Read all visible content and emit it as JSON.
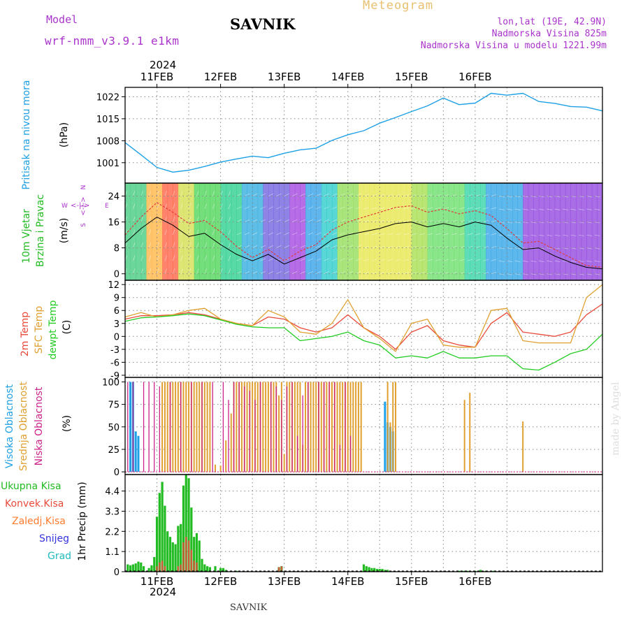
{
  "header": {
    "model_label": "Model",
    "model_name": "wrf-nmm_v3.9.1 e1km",
    "station": "SAVNIK",
    "product": "Meteogram",
    "lonlat": "lon,lat (19E, 42.9N)",
    "elevation": "Nadmorska Visina 825m",
    "model_elevation": "Nadmorska Visina u modelu 1221.99m"
  },
  "footer": {
    "station": "SAVNIK",
    "watermark": "made by Angel"
  },
  "time_axis": {
    "year": "2024",
    "days": [
      "11FEB",
      "12FEB",
      "13FEB",
      "14FEB",
      "15FEB",
      "16FEB"
    ],
    "start_hour_before_first_day": 12
  },
  "colors": {
    "pressure": "#1ea0e6",
    "wind_speed": "#000000",
    "wind_gust": "#e03c3c",
    "temp_2m": "#e84a3a",
    "temp_sfc": "#e0a030",
    "dewpoint": "#22cc22",
    "cloud_high": "#1ea0e6",
    "cloud_mid": "#e0a030",
    "cloud_low": "#cc2288",
    "precip_total": "#22bb22",
    "precip_conv": "#e84a3a",
    "precip_frz": "#ff7b2e",
    "snow": "#3333dd",
    "hail": "#22bbbb",
    "wind_label": "#22bb22",
    "wind_rose": "#aa33cc"
  },
  "chart_data": [
    {
      "id": "pressure",
      "type": "line",
      "ylabel_lines": [
        "Pritisak na nivou mora",
        "(hPa)"
      ],
      "yticks": [
        1001,
        1008,
        1015,
        1022
      ],
      "ylim": [
        994.5,
        1025
      ],
      "x_hours": [
        0,
        6,
        12,
        18,
        24,
        30,
        36,
        42,
        48,
        54,
        60,
        66,
        72,
        78,
        84,
        90,
        96,
        102,
        108,
        114,
        120,
        126,
        132,
        138,
        144,
        150,
        156,
        162,
        168,
        174,
        180
      ],
      "values": [
        1007.4,
        1003.5,
        999.5,
        998.0,
        998.6,
        999.8,
        1001.2,
        1002.2,
        1003.1,
        1002.6,
        1004.0,
        1005.1,
        1005.6,
        1008.1,
        1009.9,
        1011.2,
        1013.6,
        1015.4,
        1017.3,
        1019.1,
        1021.6,
        1019.5,
        1020.0,
        1023.1,
        1022.5,
        1023.1,
        1020.5,
        1019.9,
        1018.9,
        1018.7,
        1017.5
      ]
    },
    {
      "id": "wind",
      "type": "line",
      "ylabel_lines": [
        "10m Vjetar",
        "Brzina i Pravac",
        "(m/s)"
      ],
      "rose": {
        "n": "N",
        "s": "S",
        "e": "E",
        "w": "W"
      },
      "yticks": [
        0,
        8,
        16,
        24
      ],
      "ylim": [
        -2,
        28
      ],
      "series": [
        {
          "name": "speed",
          "x_hours": [
            0,
            6,
            12,
            18,
            24,
            30,
            36,
            42,
            48,
            54,
            60,
            66,
            72,
            78,
            84,
            90,
            96,
            102,
            108,
            114,
            120,
            126,
            132,
            138,
            144,
            150,
            156,
            162,
            168,
            174,
            180
          ],
          "values": [
            9.5,
            14.0,
            17.5,
            15.0,
            11.5,
            12.5,
            9.0,
            6.0,
            4.0,
            6.0,
            3.0,
            5.0,
            7.0,
            10.5,
            12.0,
            13.0,
            14.0,
            15.5,
            16.0,
            14.5,
            15.5,
            14.5,
            16.0,
            15.0,
            11.0,
            7.5,
            8.0,
            5.5,
            3.5,
            2.0,
            1.5
          ]
        },
        {
          "name": "gust",
          "x_hours": [
            0,
            6,
            12,
            18,
            24,
            30,
            36,
            42,
            48,
            54,
            60,
            66,
            72,
            78,
            84,
            90,
            96,
            102,
            108,
            114,
            120,
            126,
            132,
            138,
            144,
            150,
            156,
            162,
            168,
            174,
            180
          ],
          "values": [
            12.0,
            17.5,
            22.0,
            19.0,
            15.5,
            16.5,
            13.0,
            8.5,
            5.0,
            7.5,
            4.0,
            7.0,
            9.0,
            13.5,
            16.0,
            17.5,
            19.0,
            20.5,
            21.0,
            19.0,
            20.0,
            18.5,
            19.5,
            18.0,
            14.0,
            9.5,
            10.0,
            7.5,
            5.0,
            2.5,
            2.0
          ]
        }
      ]
    },
    {
      "id": "temperature",
      "type": "line",
      "ylabel_lines": [
        "2m Temp",
        "SFC Temp",
        "dewpt Temp",
        "(C)"
      ],
      "yticks": [
        -9,
        -6,
        -3,
        0,
        3,
        6,
        9,
        12
      ],
      "ylim": [
        -9.5,
        13
      ],
      "series": [
        {
          "name": "2m Temp",
          "x_hours": [
            0,
            6,
            12,
            18,
            24,
            30,
            36,
            42,
            48,
            54,
            60,
            66,
            72,
            78,
            84,
            90,
            96,
            102,
            108,
            114,
            120,
            126,
            132,
            138,
            144,
            150,
            156,
            162,
            168,
            174,
            180
          ],
          "values": [
            4.0,
            4.8,
            4.8,
            5.0,
            5.5,
            5.0,
            4.0,
            3.0,
            2.5,
            4.5,
            4.0,
            2.0,
            1.0,
            2.0,
            5.0,
            2.0,
            0.0,
            -3.0,
            1.0,
            2.5,
            -1.0,
            -2.0,
            -2.5,
            3.0,
            5.5,
            1.0,
            0.5,
            0.0,
            1.0,
            5.0,
            7.5
          ]
        },
        {
          "name": "SFC Temp",
          "x_hours": [
            0,
            6,
            12,
            18,
            24,
            30,
            36,
            42,
            48,
            54,
            60,
            66,
            72,
            78,
            84,
            90,
            96,
            102,
            108,
            114,
            120,
            126,
            132,
            138,
            144,
            150,
            156,
            162,
            168,
            174,
            180
          ],
          "values": [
            4.5,
            5.5,
            4.5,
            5.0,
            6.0,
            6.5,
            4.0,
            3.0,
            2.5,
            6.0,
            4.5,
            1.0,
            0.5,
            3.0,
            8.5,
            2.0,
            -0.5,
            -3.5,
            3.0,
            4.0,
            -2.0,
            -2.5,
            -2.5,
            6.0,
            6.5,
            -1.0,
            -1.5,
            -1.5,
            -1.5,
            9.0,
            12.0
          ]
        },
        {
          "name": "dewpt Temp",
          "x_hours": [
            0,
            6,
            12,
            18,
            24,
            30,
            36,
            42,
            48,
            54,
            60,
            66,
            72,
            78,
            84,
            90,
            96,
            102,
            108,
            114,
            120,
            126,
            132,
            138,
            144,
            150,
            156,
            162,
            168,
            174,
            180
          ],
          "values": [
            3.5,
            4.3,
            4.5,
            4.8,
            5.2,
            4.8,
            3.8,
            2.8,
            2.2,
            2.0,
            2.0,
            -1.0,
            -0.5,
            0.0,
            1.0,
            -1.0,
            -2.0,
            -5.0,
            -4.5,
            -5.0,
            -3.5,
            -5.0,
            -5.0,
            -4.5,
            -4.5,
            -7.5,
            -7.8,
            -6.0,
            -4.0,
            -3.0,
            0.5
          ]
        }
      ]
    },
    {
      "id": "clouds",
      "type": "bar",
      "ylabel_lines": [
        "Visoka Oblacnost",
        "Srednja Oblacnost",
        "Niska Oblacnost",
        "(%)"
      ],
      "yticks": [
        0,
        25,
        50,
        75,
        100
      ],
      "ylim": [
        -3,
        105
      ],
      "series": [
        {
          "name": "Visoka Oblacnost",
          "x_hours": [
            2,
            3,
            4,
            5,
            98,
            99,
            100,
            101
          ],
          "values": [
            100,
            100,
            45,
            40,
            78,
            55,
            50,
            45
          ]
        },
        {
          "name": "Srednja Oblacnost",
          "x_hours": [
            14,
            15,
            16,
            17,
            18,
            19,
            20,
            21,
            22,
            23,
            24,
            25,
            26,
            27,
            28,
            29,
            30,
            31,
            32,
            34,
            36,
            38,
            40,
            41,
            42,
            43,
            44,
            45,
            46,
            47,
            48,
            49,
            50,
            51,
            52,
            53,
            54,
            55,
            56,
            57,
            58,
            59,
            60,
            61,
            62,
            63,
            64,
            65,
            66,
            67,
            68,
            69,
            70,
            71,
            72,
            73,
            74,
            75,
            76,
            77,
            78,
            79,
            80,
            81,
            82,
            83,
            84,
            85,
            86,
            87,
            88,
            89,
            99,
            100,
            101,
            102,
            128,
            130,
            150
          ],
          "values": [
            100,
            100,
            100,
            100,
            100,
            100,
            100,
            100,
            100,
            100,
            100,
            100,
            100,
            100,
            100,
            100,
            100,
            100,
            100,
            8,
            7,
            35,
            65,
            100,
            100,
            100,
            100,
            100,
            100,
            100,
            100,
            100,
            100,
            100,
            100,
            100,
            100,
            100,
            100,
            100,
            85,
            100,
            20,
            100,
            100,
            100,
            100,
            100,
            100,
            30,
            100,
            100,
            100,
            100,
            100,
            100,
            100,
            100,
            100,
            100,
            100,
            100,
            100,
            100,
            100,
            100,
            100,
            100,
            100,
            100,
            100,
            100,
            100,
            55,
            100,
            100,
            80,
            88,
            56
          ]
        },
        {
          "name": "Niska Oblacnost",
          "x_hours": [
            1,
            3,
            7,
            9,
            11,
            13,
            17,
            21,
            25,
            29,
            33,
            37,
            39,
            41,
            43,
            45,
            47,
            49,
            51,
            55,
            57,
            59,
            61,
            63,
            65,
            67,
            69,
            73,
            75,
            77,
            79,
            81,
            83,
            85
          ],
          "values": [
            100,
            100,
            100,
            100,
            100,
            95,
            100,
            100,
            100,
            100,
            100,
            100,
            80,
            100,
            100,
            95,
            90,
            80,
            100,
            100,
            95,
            80,
            95,
            100,
            40,
            85,
            100,
            100,
            100,
            100,
            100,
            30,
            100,
            40
          ]
        }
      ]
    },
    {
      "id": "precip",
      "type": "bar",
      "ylabel_lines": [
        "1hr Precip (mm)"
      ],
      "legend": [
        "Ukupna Kisa",
        "Konvek.Kisa",
        "Zaledj.Kisa",
        "Snijeg",
        "Grad"
      ],
      "yticks": [
        0,
        1.1,
        2.2,
        3.3,
        4.4
      ],
      "ylim": [
        0,
        5.3
      ],
      "series": [
        {
          "name": "Ukupna Kisa",
          "x_hours": [
            1,
            2,
            3,
            4,
            5,
            6,
            7,
            9,
            10,
            11,
            12,
            13,
            14,
            15,
            16,
            17,
            18,
            19,
            20,
            21,
            22,
            23,
            24,
            25,
            26,
            27,
            28,
            29,
            30,
            31,
            32,
            34,
            36,
            37,
            38,
            40,
            42,
            58,
            59,
            90,
            91,
            92,
            93,
            94,
            95,
            96,
            97,
            98,
            99,
            100,
            126,
            127,
            128,
            129,
            130,
            132,
            134,
            136,
            138,
            139
          ],
          "values": [
            0.4,
            0.35,
            0.4,
            0.45,
            0.55,
            0.5,
            0.3,
            0.2,
            0.35,
            0.8,
            3.0,
            4.3,
            4.9,
            3.6,
            2.2,
            1.9,
            1.6,
            1.5,
            2.5,
            2.6,
            4.7,
            5.3,
            5.1,
            3.5,
            1.9,
            2.1,
            1.7,
            0.7,
            0.4,
            0.3,
            0.25,
            0.3,
            0.2,
            0.2,
            0.1,
            0.05,
            0.05,
            0.25,
            0.3,
            0.4,
            0.3,
            0.25,
            0.2,
            0.2,
            0.15,
            0.15,
            0.15,
            0.1,
            0.1,
            0.05,
            0.05,
            0.05,
            0.05,
            0.05,
            0.05,
            0.05,
            0.1,
            0.05,
            0.05,
            0.05
          ]
        },
        {
          "name": "Konvek.Kisa",
          "x_hours": [
            12,
            13,
            14,
            15,
            20,
            21,
            22,
            23,
            24,
            25,
            26,
            27,
            58,
            59
          ],
          "values": [
            0.3,
            0.5,
            0.6,
            0.3,
            0.3,
            0.4,
            1.6,
            1.9,
            1.7,
            1.2,
            0.6,
            0.5,
            0.25,
            0.3
          ]
        }
      ]
    }
  ]
}
